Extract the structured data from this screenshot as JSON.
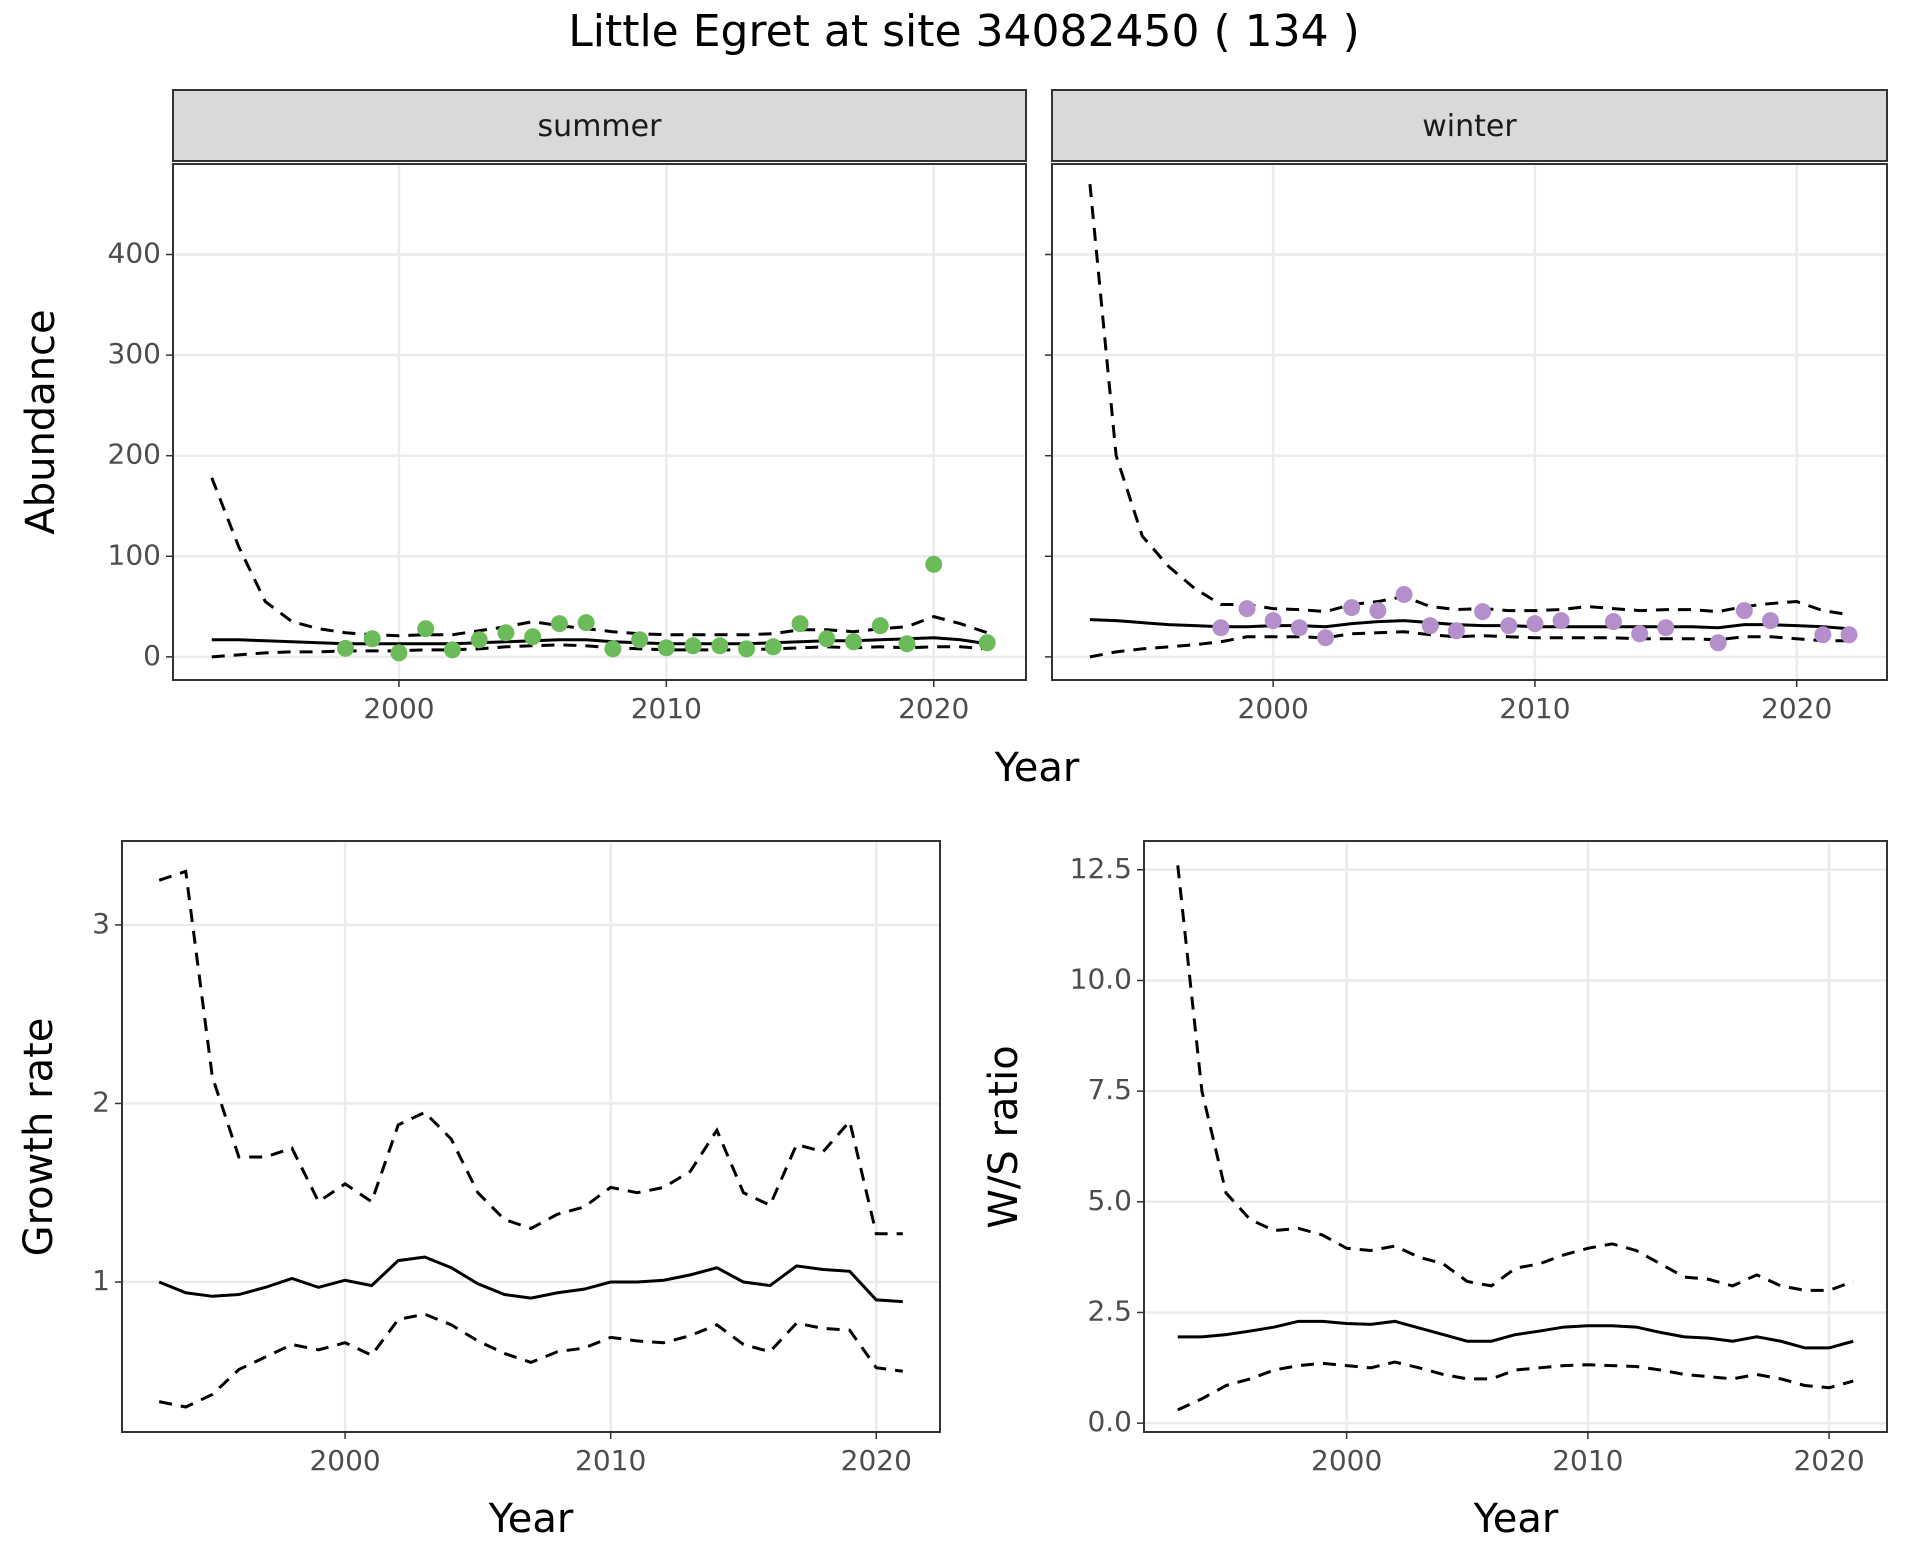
{
  "title": "Little Egret at site 34082450 ( 134 )",
  "chart_data": [
    {
      "type": "line",
      "facet": "summer",
      "ylabel": "Abundance",
      "xlabel": "Year",
      "xlim": [
        1991.55,
        2023.45
      ],
      "xticks": [
        2000,
        2010,
        2020
      ],
      "ylim": [
        -23,
        490
      ],
      "yticks": [
        0,
        100,
        200,
        300,
        400
      ],
      "show_ytick_labels": true,
      "grid": true,
      "x": [
        1993,
        1994,
        1995,
        1996,
        1997,
        1998,
        1999,
        2000,
        2001,
        2002,
        2003,
        2004,
        2005,
        2006,
        2007,
        2008,
        2009,
        2010,
        2011,
        2012,
        2013,
        2014,
        2015,
        2016,
        2017,
        2018,
        2019,
        2020,
        2021,
        2022
      ],
      "series": [
        {
          "style": "solid",
          "color": "#000000",
          "values": [
            17,
            17,
            16,
            15,
            14,
            13,
            13,
            13,
            13,
            13,
            14,
            15,
            16,
            17,
            17,
            15,
            14,
            13,
            13,
            13,
            13,
            14,
            15,
            16,
            16,
            17,
            18,
            19,
            17,
            13
          ]
        },
        {
          "style": "dashed",
          "color": "#000000",
          "values": [
            178,
            110,
            55,
            35,
            28,
            24,
            22,
            21,
            22,
            22,
            26,
            30,
            35,
            31,
            28,
            25,
            23,
            22,
            22,
            22,
            22,
            23,
            27,
            27,
            25,
            28,
            30,
            40,
            33,
            24
          ]
        },
        {
          "style": "dashed",
          "color": "#000000",
          "values": [
            0,
            2,
            4,
            5,
            5,
            6,
            6,
            6,
            7,
            7,
            8,
            10,
            11,
            12,
            11,
            9,
            8,
            7,
            7,
            7,
            7,
            8,
            9,
            10,
            9,
            10,
            9,
            10,
            10,
            8
          ]
        },
        {
          "style": "points",
          "color": "#6cbb5a",
          "values": [
            null,
            null,
            null,
            null,
            null,
            8.5,
            18,
            4,
            28,
            7,
            17,
            24,
            20,
            33,
            34,
            8,
            17,
            9,
            11,
            11,
            8,
            10,
            33,
            18,
            15,
            31,
            13,
            92,
            null,
            14
          ]
        }
      ]
    },
    {
      "type": "line",
      "facet": "winter",
      "xlim": [
        1991.55,
        2023.45
      ],
      "xticks": [
        2000,
        2010,
        2020
      ],
      "ylim": [
        -23,
        490
      ],
      "yticks": [
        0,
        100,
        200,
        300,
        400
      ],
      "show_ytick_labels": false,
      "grid": true,
      "x": [
        1993,
        1994,
        1995,
        1996,
        1997,
        1998,
        1999,
        2000,
        2001,
        2002,
        2003,
        2004,
        2005,
        2006,
        2007,
        2008,
        2009,
        2010,
        2011,
        2012,
        2013,
        2014,
        2015,
        2016,
        2017,
        2018,
        2019,
        2020,
        2021,
        2022
      ],
      "series": [
        {
          "style": "solid",
          "color": "#000000",
          "values": [
            37,
            36,
            34,
            32,
            31,
            30,
            30,
            31,
            31,
            30,
            33,
            35,
            36,
            34,
            32,
            31,
            31,
            30,
            30,
            30,
            30,
            30,
            30,
            30,
            29,
            32,
            32,
            31,
            30,
            28
          ]
        },
        {
          "style": "dashed",
          "color": "#000000",
          "values": [
            470,
            200,
            120,
            90,
            68,
            52,
            52,
            48,
            47,
            45,
            52,
            55,
            60,
            50,
            47,
            48,
            46,
            46,
            47,
            50,
            48,
            46,
            47,
            47,
            45,
            50,
            53,
            55,
            46,
            42
          ]
        },
        {
          "style": "dashed",
          "color": "#000000",
          "values": [
            0,
            5,
            8,
            10,
            12,
            15,
            20,
            20,
            20,
            19,
            23,
            24,
            25,
            22,
            20,
            21,
            20,
            19,
            19,
            19,
            19,
            18,
            18,
            18,
            17,
            20,
            20,
            18,
            16,
            16
          ]
        },
        {
          "style": "points",
          "color": "#b58fcb",
          "values": [
            null,
            null,
            null,
            null,
            null,
            29,
            48,
            36,
            29,
            19,
            49,
            46,
            62,
            31,
            26,
            45,
            31,
            33,
            36,
            null,
            35,
            23,
            29,
            null,
            14,
            46,
            36,
            null,
            22,
            22
          ]
        }
      ]
    },
    {
      "type": "line",
      "ylabel": "Growth rate",
      "xlabel": "Year",
      "xlim": [
        1991.6,
        2022.4
      ],
      "xticks": [
        2000,
        2010,
        2020
      ],
      "ylim": [
        0.16,
        3.47
      ],
      "yticks": [
        1,
        2,
        3
      ],
      "show_ytick_labels": true,
      "grid": true,
      "x": [
        1993,
        1994,
        1995,
        1996,
        1997,
        1998,
        1999,
        2000,
        2001,
        2002,
        2003,
        2004,
        2005,
        2006,
        2007,
        2008,
        2009,
        2010,
        2011,
        2012,
        2013,
        2014,
        2015,
        2016,
        2017,
        2018,
        2019,
        2020,
        2021
      ],
      "series": [
        {
          "style": "solid",
          "color": "#000000",
          "values": [
            1.0,
            0.94,
            0.92,
            0.93,
            0.97,
            1.02,
            0.97,
            1.01,
            0.98,
            1.12,
            1.14,
            1.08,
            0.99,
            0.93,
            0.91,
            0.94,
            0.96,
            1.0,
            1.0,
            1.01,
            1.04,
            1.08,
            1.0,
            0.98,
            1.09,
            1.07,
            1.06,
            0.9,
            0.89
          ]
        },
        {
          "style": "dashed",
          "color": "#000000",
          "values": [
            3.25,
            3.3,
            2.15,
            1.7,
            1.7,
            1.75,
            1.45,
            1.55,
            1.45,
            1.88,
            1.95,
            1.8,
            1.5,
            1.35,
            1.3,
            1.38,
            1.42,
            1.53,
            1.5,
            1.53,
            1.62,
            1.85,
            1.5,
            1.43,
            1.77,
            1.73,
            1.9,
            1.27,
            1.27
          ]
        },
        {
          "style": "dashed",
          "color": "#000000",
          "values": [
            0.33,
            0.3,
            0.37,
            0.51,
            0.58,
            0.65,
            0.62,
            0.66,
            0.59,
            0.79,
            0.82,
            0.76,
            0.67,
            0.6,
            0.55,
            0.61,
            0.63,
            0.69,
            0.67,
            0.66,
            0.7,
            0.76,
            0.65,
            0.61,
            0.77,
            0.74,
            0.73,
            0.52,
            0.5
          ]
        }
      ]
    },
    {
      "type": "line",
      "ylabel": "W/S ratio",
      "xlabel": "Year",
      "xlim": [
        1991.6,
        2022.4
      ],
      "xticks": [
        2000,
        2010,
        2020
      ],
      "ylim": [
        -0.2,
        13.15
      ],
      "yticks": [
        {
          "value": 0,
          "label": "0.0"
        },
        2.5,
        {
          "value": 5,
          "label": "5.0"
        },
        7.5,
        {
          "value": 10,
          "label": "10.0"
        },
        12.5
      ],
      "show_ytick_labels": true,
      "grid": true,
      "x": [
        1993,
        1994,
        1995,
        1996,
        1997,
        1998,
        1999,
        2000,
        2001,
        2002,
        2003,
        2004,
        2005,
        2006,
        2007,
        2008,
        2009,
        2010,
        2011,
        2012,
        2013,
        2014,
        2015,
        2016,
        2017,
        2018,
        2019,
        2020,
        2021
      ],
      "series": [
        {
          "style": "solid",
          "color": "#000000",
          "values": [
            1.95,
            1.95,
            2.0,
            2.08,
            2.17,
            2.3,
            2.3,
            2.25,
            2.23,
            2.3,
            2.15,
            2.0,
            1.85,
            1.85,
            2.0,
            2.08,
            2.17,
            2.2,
            2.2,
            2.17,
            2.05,
            1.95,
            1.92,
            1.85,
            1.95,
            1.85,
            1.7,
            1.7,
            1.85
          ]
        },
        {
          "style": "dashed",
          "color": "#000000",
          "values": [
            12.6,
            7.5,
            5.2,
            4.6,
            4.35,
            4.4,
            4.25,
            3.95,
            3.9,
            4.0,
            3.75,
            3.6,
            3.2,
            3.1,
            3.5,
            3.6,
            3.8,
            3.95,
            4.05,
            3.9,
            3.6,
            3.3,
            3.25,
            3.1,
            3.35,
            3.1,
            3.0,
            3.0,
            3.2
          ]
        },
        {
          "style": "dashed",
          "color": "#000000",
          "values": [
            0.3,
            0.55,
            0.85,
            1.0,
            1.2,
            1.3,
            1.35,
            1.3,
            1.25,
            1.38,
            1.25,
            1.1,
            1.0,
            1.0,
            1.2,
            1.25,
            1.3,
            1.32,
            1.3,
            1.28,
            1.2,
            1.1,
            1.05,
            1.0,
            1.1,
            1.0,
            0.85,
            0.8,
            0.95
          ]
        }
      ]
    }
  ]
}
